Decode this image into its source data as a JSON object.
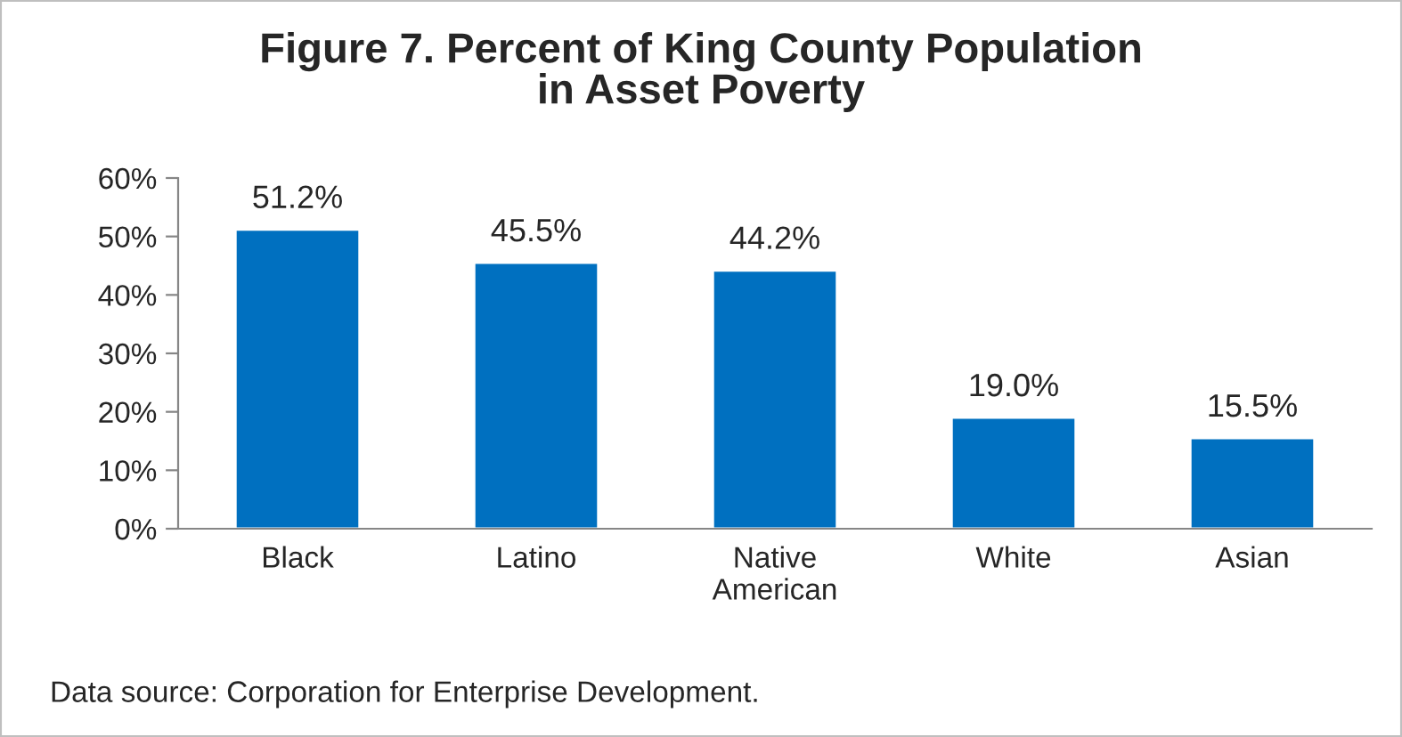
{
  "chart_data": {
    "type": "bar",
    "title": "Figure 7. Percent of King County Population\nin Asset Poverty",
    "categories": [
      "Black",
      "Latino",
      "Native\nAmerican",
      "White",
      "Asian"
    ],
    "values": [
      51.2,
      45.5,
      44.2,
      19.0,
      15.5
    ],
    "value_labels": [
      "51.2%",
      "45.5%",
      "44.2%",
      "19.0%",
      "15.5%"
    ],
    "color": "#0070c0",
    "ylim": [
      0,
      60
    ],
    "yticks": [
      {
        "value": 0,
        "label": "0%"
      },
      {
        "value": 10,
        "label": "10%"
      },
      {
        "value": 20,
        "label": "20%"
      },
      {
        "value": 30,
        "label": "30%"
      },
      {
        "value": 40,
        "label": "40%"
      },
      {
        "value": 50,
        "label": "50%"
      },
      {
        "value": 60,
        "label": "60%"
      }
    ],
    "grid": false,
    "annotations": [
      "Data source: Corporation for Enterprise Development."
    ]
  }
}
